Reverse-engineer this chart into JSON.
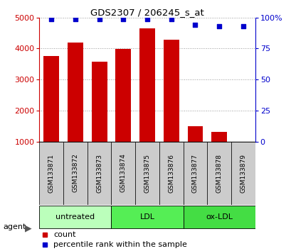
{
  "title": "GDS2307 / 206245_s_at",
  "samples": [
    "GSM133871",
    "GSM133872",
    "GSM133873",
    "GSM133874",
    "GSM133875",
    "GSM133876",
    "GSM133877",
    "GSM133878",
    "GSM133879"
  ],
  "counts": [
    3750,
    4200,
    3570,
    3980,
    4650,
    4280,
    1490,
    1310,
    970
  ],
  "percentiles": [
    99,
    99,
    99,
    99,
    99,
    99,
    94,
    93,
    93
  ],
  "groups": [
    {
      "label": "untreated",
      "start": 0,
      "end": 3,
      "color": "#bbffbb"
    },
    {
      "label": "LDL",
      "start": 3,
      "end": 6,
      "color": "#55ee55"
    },
    {
      "label": "ox-LDL",
      "start": 6,
      "end": 9,
      "color": "#44dd44"
    }
  ],
  "bar_color": "#cc0000",
  "dot_color": "#0000cc",
  "ylim_left": [
    1000,
    5000
  ],
  "ylim_right": [
    0,
    100
  ],
  "yticks_left": [
    1000,
    2000,
    3000,
    4000,
    5000
  ],
  "yticks_right": [
    0,
    25,
    50,
    75,
    100
  ],
  "left_axis_color": "#cc0000",
  "right_axis_color": "#0000cc",
  "background_color": "#ffffff",
  "grid_color": "#999999",
  "label_box_color": "#cccccc",
  "agent_label": "agent",
  "legend_count_label": "count",
  "legend_percentile_label": "percentile rank within the sample"
}
